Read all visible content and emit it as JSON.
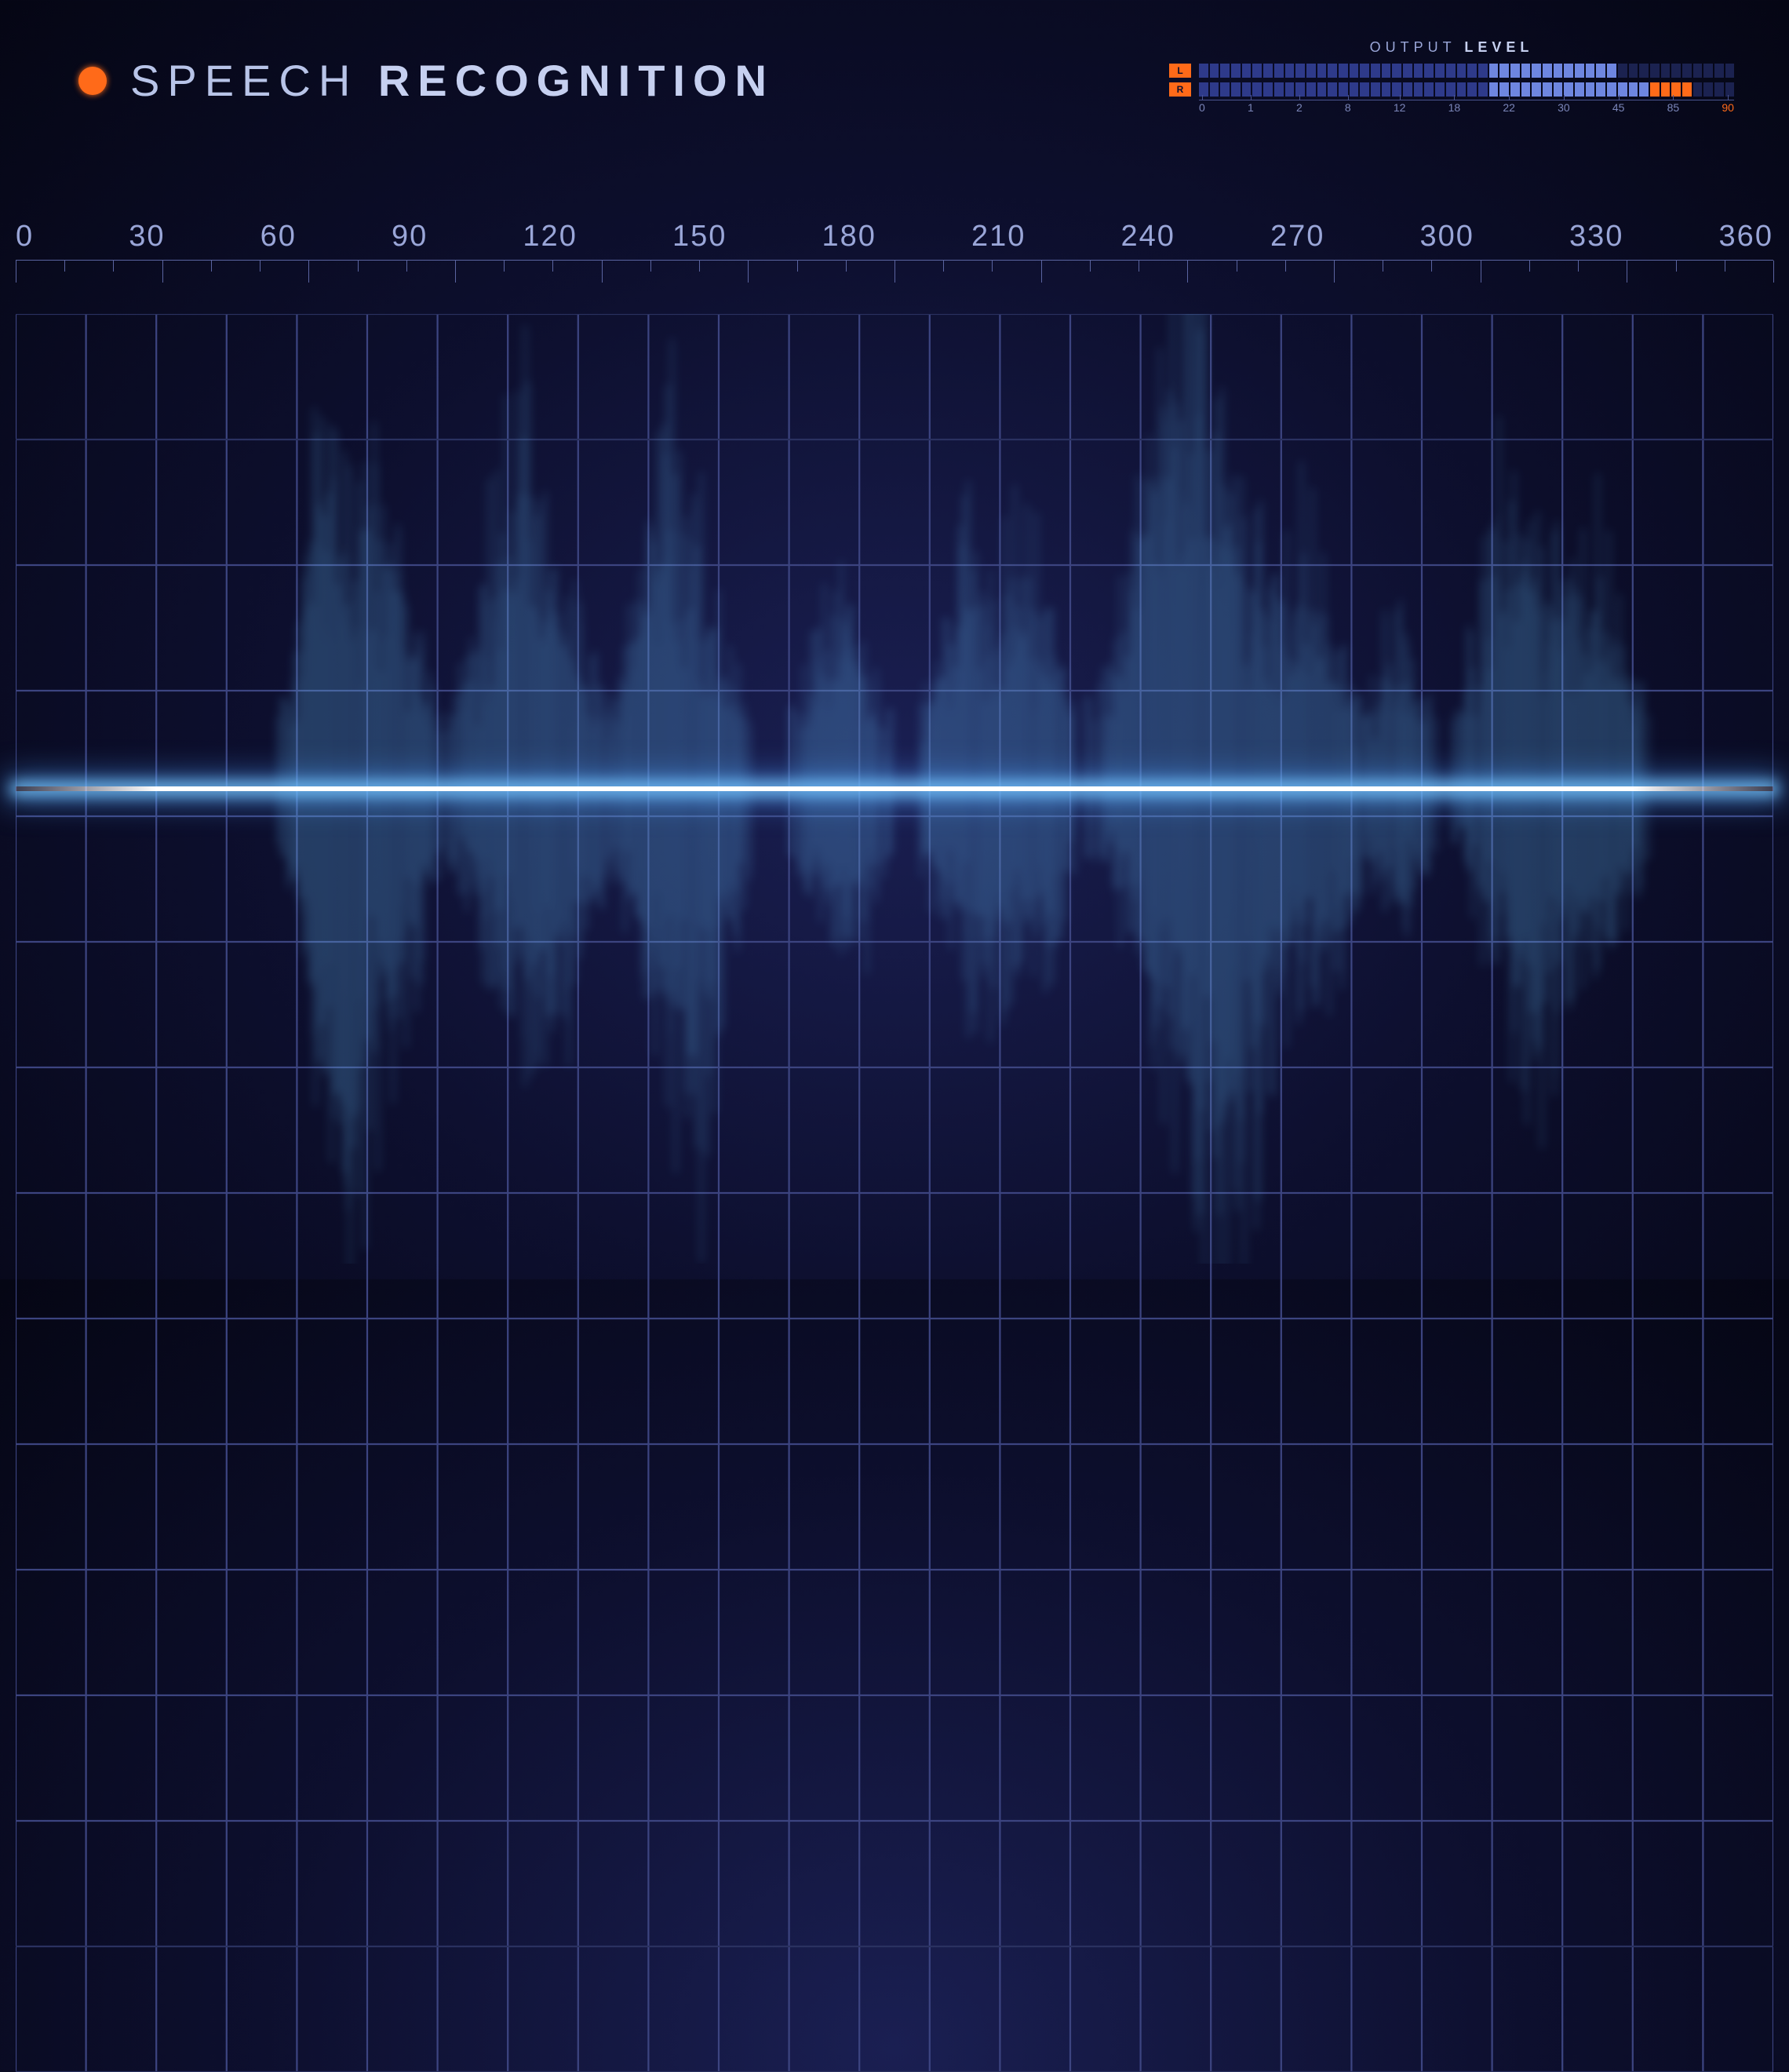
{
  "header": {
    "title_light": "SPEECH",
    "title_bold": "RECOGNITION",
    "dot_color": "#ff6a19"
  },
  "level_meter": {
    "label_light": "OUTPUT",
    "label_bold": "LEVEL",
    "channels": [
      {
        "name": "L",
        "fill": 0.78
      },
      {
        "name": "R",
        "fill": 0.92
      }
    ],
    "segments": 50,
    "colors": {
      "off": "#1b2250",
      "low": "#2e3a8a",
      "mid": "#6e86e0",
      "high": "#ff6a19"
    },
    "thresholds": {
      "mid_start": 0.55,
      "high_start": 0.85
    },
    "scale": [
      "0",
      "1",
      "2",
      "8",
      "12",
      "18",
      "22",
      "30",
      "45",
      "85",
      "90"
    ],
    "scale_hot_index": 10
  },
  "ruler": {
    "labels": [
      "0",
      "30",
      "60",
      "90",
      "120",
      "150",
      "180",
      "210",
      "240",
      "270",
      "300",
      "330",
      "360"
    ],
    "label_color": "#9aa6d8",
    "tick_color": "#5a64a0",
    "minor_per_major": 2
  },
  "plot": {
    "background_gradient": [
      "#1a1f52",
      "#0d0f2e",
      "#050614"
    ],
    "grid": {
      "v_count": 25,
      "h_count": 14,
      "color": "#3c4480",
      "faint_color": "#2a3160"
    },
    "centerline_color": "#ffffff",
    "centerline_glow": "#5cc8ff"
  },
  "waveform": {
    "type": "waveform",
    "x_range": [
      0,
      360
    ],
    "amplitude_scale": 1.0,
    "colors": {
      "peak": "#e8f6ff",
      "body": "#69c4ff",
      "base": "#2a5fd0",
      "shadow": "#0d2a80"
    },
    "line_width": 1,
    "envelope": [
      {
        "x": 0,
        "up": 0.0,
        "dn": 0.0
      },
      {
        "x": 8,
        "up": 0.02,
        "dn": 0.02
      },
      {
        "x": 20,
        "up": 0.03,
        "dn": 0.03
      },
      {
        "x": 40,
        "up": 0.04,
        "dn": 0.04
      },
      {
        "x": 52,
        "up": 0.05,
        "dn": 0.05
      },
      {
        "x": 58,
        "up": 0.3,
        "dn": 0.25
      },
      {
        "x": 62,
        "up": 0.72,
        "dn": 0.55
      },
      {
        "x": 66,
        "up": 0.6,
        "dn": 0.85
      },
      {
        "x": 70,
        "up": 0.45,
        "dn": 0.7
      },
      {
        "x": 76,
        "up": 0.55,
        "dn": 0.5
      },
      {
        "x": 82,
        "up": 0.3,
        "dn": 0.35
      },
      {
        "x": 88,
        "up": 0.1,
        "dn": 0.1
      },
      {
        "x": 96,
        "up": 0.4,
        "dn": 0.3
      },
      {
        "x": 102,
        "up": 0.78,
        "dn": 0.45
      },
      {
        "x": 108,
        "up": 0.55,
        "dn": 0.55
      },
      {
        "x": 114,
        "up": 0.35,
        "dn": 0.4
      },
      {
        "x": 122,
        "up": 0.15,
        "dn": 0.15
      },
      {
        "x": 128,
        "up": 0.5,
        "dn": 0.35
      },
      {
        "x": 134,
        "up": 0.7,
        "dn": 0.6
      },
      {
        "x": 140,
        "up": 0.45,
        "dn": 0.7
      },
      {
        "x": 146,
        "up": 0.25,
        "dn": 0.3
      },
      {
        "x": 152,
        "up": 0.08,
        "dn": 0.08
      },
      {
        "x": 158,
        "up": 0.1,
        "dn": 0.1
      },
      {
        "x": 164,
        "up": 0.3,
        "dn": 0.25
      },
      {
        "x": 170,
        "up": 0.42,
        "dn": 0.35
      },
      {
        "x": 176,
        "up": 0.2,
        "dn": 0.25
      },
      {
        "x": 182,
        "up": 0.08,
        "dn": 0.08
      },
      {
        "x": 188,
        "up": 0.25,
        "dn": 0.2
      },
      {
        "x": 194,
        "up": 0.48,
        "dn": 0.35
      },
      {
        "x": 200,
        "up": 0.35,
        "dn": 0.4
      },
      {
        "x": 206,
        "up": 0.5,
        "dn": 0.3
      },
      {
        "x": 212,
        "up": 0.3,
        "dn": 0.35
      },
      {
        "x": 218,
        "up": 0.12,
        "dn": 0.12
      },
      {
        "x": 224,
        "up": 0.2,
        "dn": 0.15
      },
      {
        "x": 230,
        "up": 0.55,
        "dn": 0.35
      },
      {
        "x": 236,
        "up": 0.95,
        "dn": 0.55
      },
      {
        "x": 240,
        "up": 1.0,
        "dn": 0.7
      },
      {
        "x": 246,
        "up": 0.8,
        "dn": 0.95
      },
      {
        "x": 252,
        "up": 0.55,
        "dn": 0.75
      },
      {
        "x": 258,
        "up": 0.35,
        "dn": 0.45
      },
      {
        "x": 264,
        "up": 0.5,
        "dn": 0.35
      },
      {
        "x": 270,
        "up": 0.3,
        "dn": 0.4
      },
      {
        "x": 276,
        "up": 0.15,
        "dn": 0.18
      },
      {
        "x": 282,
        "up": 0.3,
        "dn": 0.25
      },
      {
        "x": 288,
        "up": 0.2,
        "dn": 0.2
      },
      {
        "x": 294,
        "up": 0.1,
        "dn": 0.1
      },
      {
        "x": 300,
        "up": 0.35,
        "dn": 0.25
      },
      {
        "x": 306,
        "up": 0.65,
        "dn": 0.4
      },
      {
        "x": 312,
        "up": 0.5,
        "dn": 0.55
      },
      {
        "x": 318,
        "up": 0.35,
        "dn": 0.35
      },
      {
        "x": 324,
        "up": 0.45,
        "dn": 0.3
      },
      {
        "x": 330,
        "up": 0.25,
        "dn": 0.25
      },
      {
        "x": 336,
        "up": 0.1,
        "dn": 0.1
      },
      {
        "x": 344,
        "up": 0.04,
        "dn": 0.04
      },
      {
        "x": 352,
        "up": 0.03,
        "dn": 0.03
      },
      {
        "x": 360,
        "up": 0.0,
        "dn": 0.0
      }
    ],
    "noise_density": 3,
    "jitter": 0.35
  }
}
